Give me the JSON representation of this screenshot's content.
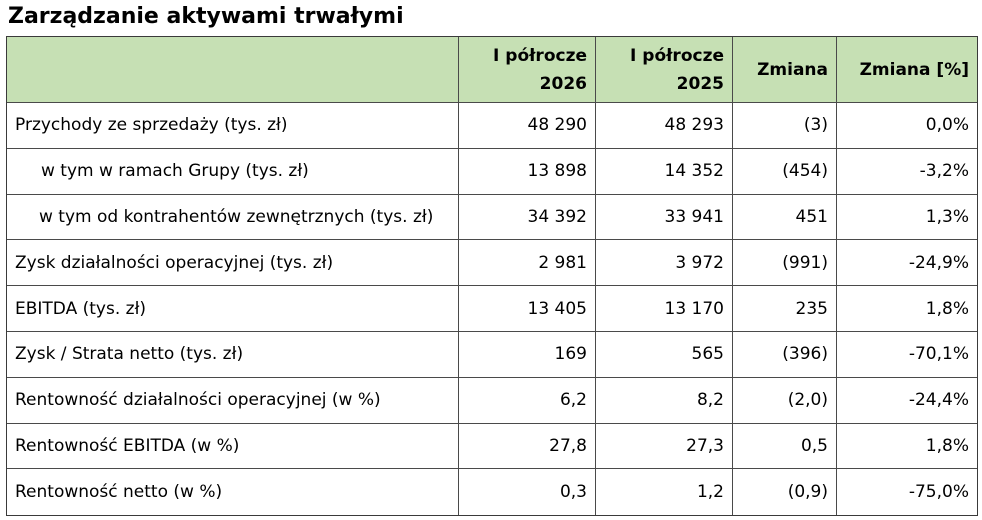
{
  "title": "Zarządzanie aktywami trwałymi",
  "table": {
    "headers": {
      "label": "",
      "h1_line1": "I półrocze",
      "h1_line2": "2026",
      "h2_line1": "I półrocze",
      "h2_line2": "2025",
      "change": "Zmiana",
      "change_pct": "Zmiana [%]"
    },
    "rows": [
      {
        "label": "Przychody ze sprzedaży (tys. zł)",
        "h1": "48 290",
        "h2": "48 293",
        "change": "(3)",
        "change_pct": "0,0%"
      },
      {
        "label": "w tym w ramach Grupy (tys. zł)",
        "h1": "13 898",
        "h2": "14 352",
        "change": "(454)",
        "change_pct": "-3,2%"
      },
      {
        "label": "w tym od kontrahentów zewnętrznych (tys. zł)",
        "h1": "34 392",
        "h2": "33 941",
        "change": "451",
        "change_pct": "1,3%"
      },
      {
        "label": "Zysk działalności operacyjnej (tys. zł)",
        "h1": "2 981",
        "h2": "3 972",
        "change": "(991)",
        "change_pct": "-24,9%"
      },
      {
        "label": "EBITDA (tys. zł)",
        "h1": "13 405",
        "h2": "13 170",
        "change": "235",
        "change_pct": "1,8%"
      },
      {
        "label": "Zysk / Strata netto (tys. zł)",
        "h1": "169",
        "h2": "565",
        "change": "(396)",
        "change_pct": "-70,1%"
      },
      {
        "label": "Rentowność działalności operacyjnej (w %)",
        "h1": "6,2",
        "h2": "8,2",
        "change": "(2,0)",
        "change_pct": "-24,4%"
      },
      {
        "label": "Rentowność EBITDA (w %)",
        "h1": "27,8",
        "h2": "27,3",
        "change": "0,5",
        "change_pct": "1,8%"
      },
      {
        "label": "Rentowność netto (w %)",
        "h1": "0,3",
        "h2": "1,2",
        "change": "(0,9)",
        "change_pct": "-75,0%"
      }
    ]
  }
}
